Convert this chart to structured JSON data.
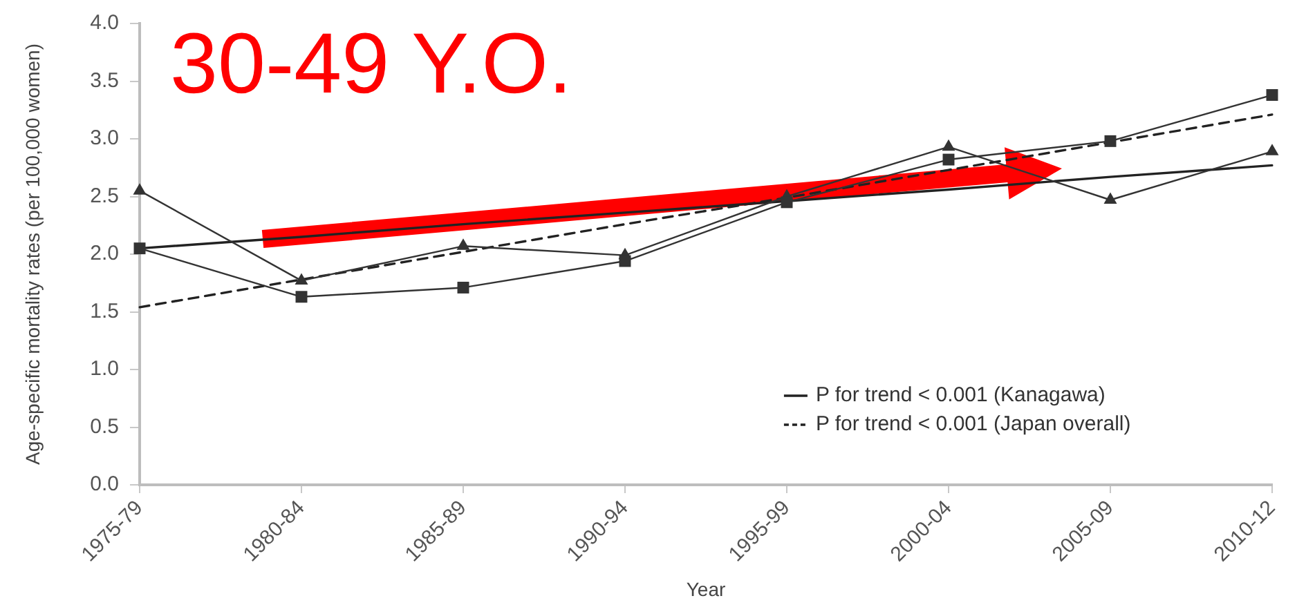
{
  "chart_data": {
    "type": "line",
    "xlabel": "Year",
    "ylabel": "Age-specific mortality rates (per 100,000 women)",
    "annotations": [
      "30-49 Y.O."
    ],
    "categories": [
      "1975-79",
      "1980-84",
      "1985-89",
      "1990-94",
      "1995-99",
      "2000-04",
      "2005-09",
      "2010-12"
    ],
    "series": [
      {
        "color": "#333333",
        "marker": "square",
        "values": [
          2.05,
          1.63,
          1.71,
          1.94,
          2.45,
          2.82,
          2.98,
          3.38
        ]
      },
      {
        "color": "#333333",
        "marker": "triangle",
        "values": [
          2.55,
          1.77,
          2.07,
          1.99,
          2.5,
          2.93,
          2.47,
          2.89
        ]
      },
      {
        "name": "P for trend < 0.001 (Kanagawa)",
        "color": "#222222",
        "marker": "none",
        "line_style": "solid",
        "values": [
          2.05,
          2.15,
          2.26,
          2.36,
          2.46,
          2.56,
          2.67,
          2.77
        ]
      },
      {
        "name": "P for trend < 0.001 (Japan overall)",
        "color": "#222222",
        "marker": "none",
        "line_style": "dashed",
        "values": [
          1.54,
          1.78,
          2.02,
          2.26,
          2.49,
          2.73,
          2.97,
          3.21
        ]
      }
    ],
    "ylim": [
      0,
      4
    ],
    "yticks": [
      {
        "value": 0,
        "label": "0.0"
      },
      0.5,
      {
        "value": 1,
        "label": "1.0"
      },
      1.5,
      {
        "value": 2,
        "label": "2.0"
      },
      2.5,
      {
        "value": 3,
        "label": "3.0"
      },
      3.5,
      {
        "value": 4,
        "label": "4.0"
      }
    ],
    "legend": "bottom right"
  }
}
